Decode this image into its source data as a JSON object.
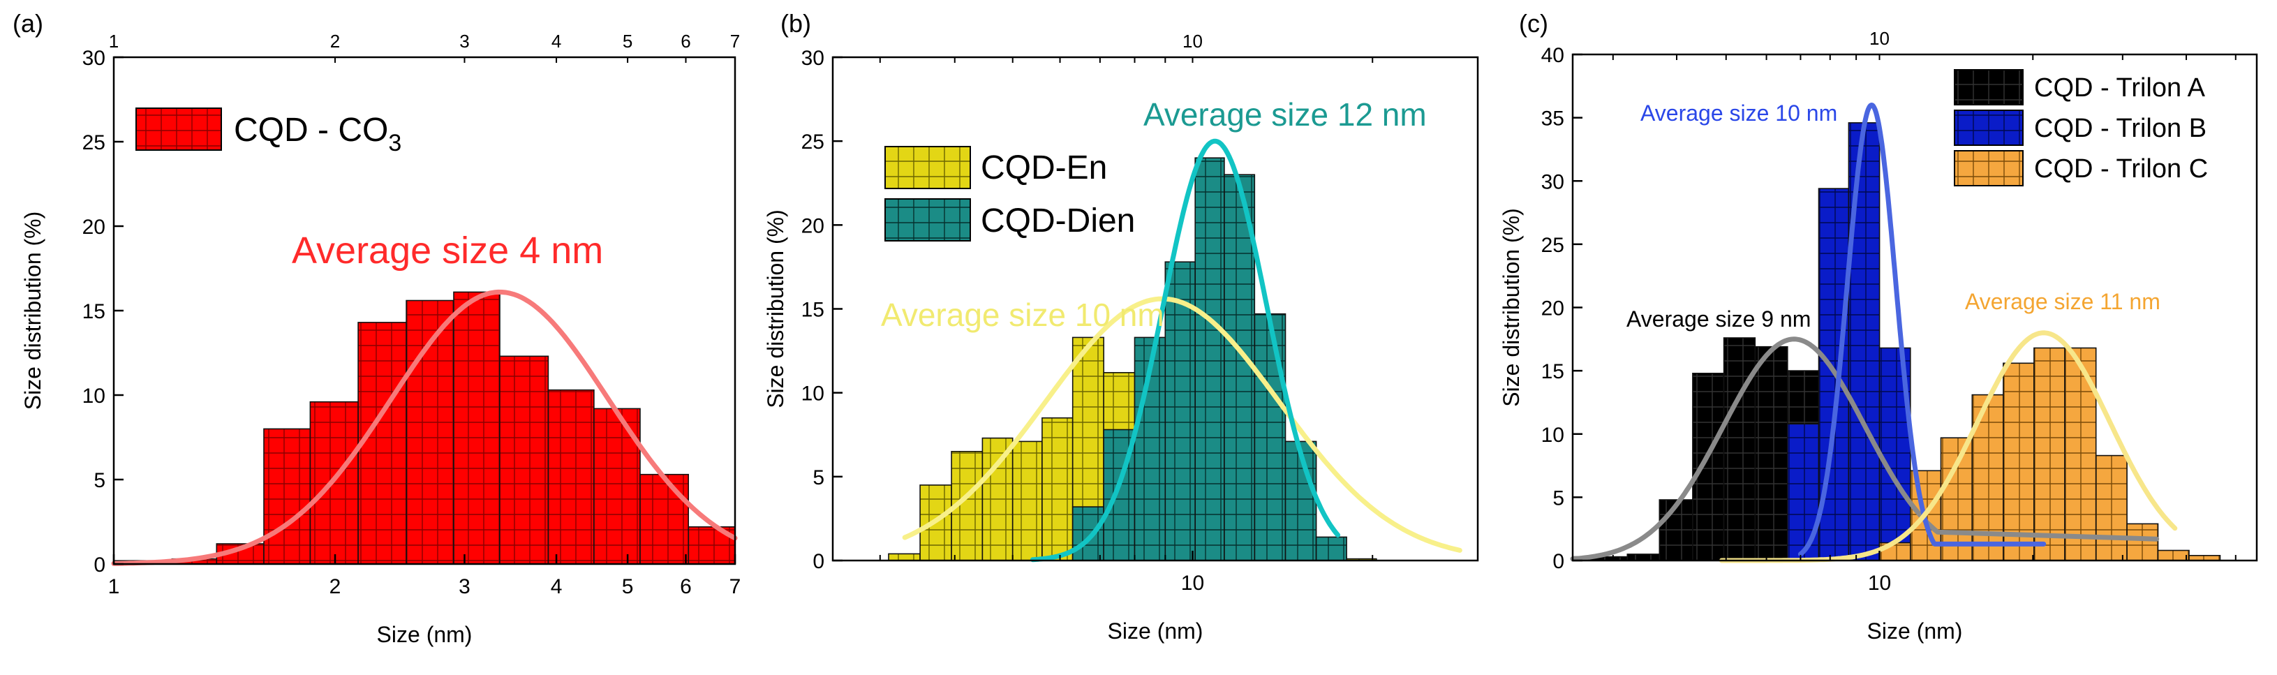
{
  "chart_data": [
    {
      "panel_label": "(a)",
      "type": "histogram",
      "xscale": "log",
      "xlim": [
        1,
        7
      ],
      "ylim": [
        0,
        30
      ],
      "xlabel": "Size (nm)",
      "ylabel": "Size distribution (%)",
      "xticks": [
        1,
        2,
        3,
        4,
        5,
        6,
        7
      ],
      "yticks": [
        0,
        5,
        10,
        15,
        20,
        25,
        30
      ],
      "top_ticks": [
        1,
        2,
        3,
        4,
        5,
        6,
        7
      ],
      "series": [
        {
          "name": "CQD - CO",
          "name_sub": "3",
          "color": "#ff0000",
          "fill_color": "#ff0000",
          "bin_edges": [
            1.0,
            1.2,
            1.38,
            1.6,
            1.85,
            2.15,
            2.5,
            2.9,
            3.35,
            3.9,
            4.5,
            5.2,
            6.05,
            7.0
          ],
          "values": [
            0.2,
            0.3,
            1.2,
            8.0,
            9.6,
            14.3,
            15.6,
            16.1,
            12.3,
            10.3,
            9.2,
            5.3,
            2.2
          ]
        }
      ],
      "fits": [
        {
          "name": "fit",
          "color": "#f77a7a",
          "peak_x": 3.35,
          "peak_y": 16.1,
          "sigma_log": 0.34,
          "x_from": 1.0,
          "x_to": 7.0
        }
      ],
      "annotations": [
        {
          "text": "Average size 4 nm",
          "color": "#ff2a2a"
        }
      ]
    },
    {
      "panel_label": "(b)",
      "type": "histogram",
      "xscale": "log",
      "xlim": [
        2.5,
        30
      ],
      "ylim": [
        0,
        30
      ],
      "xlabel": "Size (nm)",
      "ylabel": "Size distribution (%)",
      "xticks": [
        10
      ],
      "yticks": [
        0,
        5,
        10,
        15,
        20,
        25,
        30
      ],
      "top_ticks": [
        10
      ],
      "series": [
        {
          "name": "CQD-En",
          "color": "#e8e000",
          "fill_color": "#e3d615",
          "bin_edges": [
            3.1,
            3.5,
            3.95,
            4.45,
            5.0,
            5.6,
            6.3,
            7.1,
            8.0,
            9.0,
            10.1,
            11.3,
            12.7,
            14.3,
            16.1,
            18.1,
            20.3
          ],
          "values": [
            0.4,
            4.5,
            6.5,
            7.3,
            7.1,
            8.5,
            13.3,
            11.2,
            7.0,
            5.1,
            3.5,
            2.0,
            0.9,
            0.4,
            0.2,
            0.1
          ]
        },
        {
          "name": "CQD-Dien",
          "color": "#1a8a85",
          "fill_color": "#1b8c86",
          "bin_edges": [
            3.1,
            3.5,
            3.95,
            4.45,
            5.0,
            5.6,
            6.3,
            7.1,
            8.0,
            9.0,
            10.1,
            11.3,
            12.7,
            14.3,
            16.1,
            18.1,
            20.3
          ],
          "values": [
            0,
            0,
            0,
            0,
            0,
            0,
            3.2,
            7.8,
            13.3,
            17.8,
            24.0,
            23.0,
            14.7,
            7.1,
            1.4,
            0
          ]
        }
      ],
      "fits": [
        {
          "name": "fit-en",
          "color": "#f8f08a",
          "peak_x": 8.9,
          "peak_y": 15.6,
          "sigma_log": 0.45,
          "x_from": 3.3,
          "x_to": 28
        },
        {
          "name": "fit-dien",
          "color": "#12c4c4",
          "peak_x": 10.9,
          "peak_y": 25.0,
          "sigma_log": 0.2,
          "x_from": 5.4,
          "x_to": 17.5
        }
      ],
      "annotations": [
        {
          "text": "Average size 12 nm",
          "color": "#1b9a92"
        },
        {
          "text": "Average size 10 nm",
          "color": "#f1ea70"
        }
      ]
    },
    {
      "panel_label": "(c)",
      "type": "histogram",
      "xscale": "log",
      "xlim": [
        2.5,
        55
      ],
      "ylim": [
        0,
        40
      ],
      "xlabel": "Size (nm)",
      "ylabel": "Size distribution (%)",
      "xticks": [
        10
      ],
      "yticks": [
        0,
        5,
        10,
        15,
        20,
        25,
        30,
        35,
        40
      ],
      "top_ticks": [
        10
      ],
      "series": [
        {
          "name": "CQD - Trilon A",
          "color": "#000000",
          "fill_color": "#000000",
          "bin_edges": [
            2.5,
            3.2,
            3.7,
            4.3,
            4.95,
            5.7,
            6.6,
            7.6,
            8.7,
            10.0,
            11.5,
            13.2,
            15.2
          ],
          "values": [
            0.3,
            0.5,
            4.8,
            14.8,
            17.6,
            16.9,
            15.0,
            7.4,
            2.0,
            0.8,
            0.3,
            0.1
          ]
        },
        {
          "name": "CQD - Trilon B",
          "color": "#0015c8",
          "fill_color": "#0a1cc8",
          "bin_edges": [
            6.6,
            7.6,
            8.7,
            10.0,
            11.5,
            13.2
          ],
          "values": [
            10.8,
            29.4,
            34.6,
            16.8,
            2.6
          ]
        },
        {
          "name": "CQD - Trilon C",
          "color": "#f2a03a",
          "fill_color": "#f5a73f",
          "bin_edges": [
            10.0,
            11.5,
            13.2,
            15.2,
            17.5,
            20.1,
            23.1,
            26.6,
            30.6,
            35.2,
            40.5,
            46.6
          ],
          "values": [
            1.4,
            7.1,
            9.7,
            13.1,
            15.6,
            16.8,
            16.8,
            8.3,
            2.9,
            0.8,
            0.4
          ]
        }
      ],
      "fits": [
        {
          "name": "fit-a",
          "color": "#8a8a8a",
          "peak_x": 6.8,
          "peak_y": 17.5,
          "sigma_log": 0.32,
          "x_from": 2.5,
          "x_to": 13.0,
          "baseline_after": 1.7,
          "baseline_to": 35
        },
        {
          "name": "fit-b",
          "color": "#4a66e0",
          "peak_x": 9.65,
          "peak_y": 36.0,
          "sigma_log": 0.11,
          "x_from": 7.0,
          "x_to": 13.0,
          "baseline_after": 1.3,
          "baseline_to": 21
        },
        {
          "name": "fit-c",
          "color": "#f7e68a",
          "peak_x": 21.0,
          "peak_y": 18.0,
          "sigma_log": 0.3,
          "x_from": 4.9,
          "x_to": 38
        }
      ],
      "annotations": [
        {
          "text": "Average size 10 nm",
          "color": "#2a47e8"
        },
        {
          "text": "Average size 9 nm",
          "color": "#000000"
        },
        {
          "text": "Average size 11 nm",
          "color": "#f4a531"
        }
      ]
    }
  ]
}
